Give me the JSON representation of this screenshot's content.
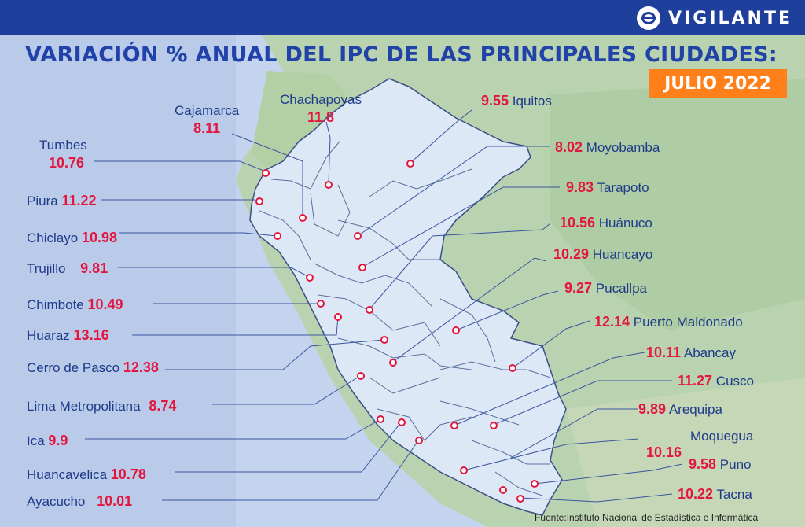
{
  "brand": {
    "name": "VIGILANTE",
    "logo_icon": "vigilante-logo-icon"
  },
  "title": "VARIACIÓN % ANUAL DEL IPC DE LAS PRINCIPALES CIUDADES:",
  "subtitle": "JULIO 2022",
  "source": "Fuente:Instituto Nacional de Estadística e Informática",
  "colors": {
    "accent_blue": "#1f3f9c",
    "value_red": "#e3163f",
    "badge_orange": "#ff7f1a",
    "map_fill": "#dde8f6"
  },
  "cities": {
    "tumbes": {
      "name": "Tumbes",
      "value": "10.76"
    },
    "piura": {
      "name": "Piura",
      "value": "11.22"
    },
    "chiclayo": {
      "name": "Chiclayo",
      "value": "10.98"
    },
    "trujillo": {
      "name": "Trujillo",
      "value": "9.81"
    },
    "chimbote": {
      "name": "Chimbote",
      "value": "10.49"
    },
    "huaraz": {
      "name": "Huaraz",
      "value": "13.16"
    },
    "cerro_de_pasco": {
      "name": "Cerro de Pasco",
      "value": "12.38"
    },
    "lima": {
      "name": "Lima Metropolitana",
      "value": "8.74"
    },
    "ica": {
      "name": "Ica",
      "value": "9.9"
    },
    "huancavelica": {
      "name": "Huancavelica",
      "value": "10.78"
    },
    "ayacucho": {
      "name": "Ayacucho",
      "value": "10.01"
    },
    "cajamarca": {
      "name": "Cajamarca",
      "value": "8.11"
    },
    "chachapoyas": {
      "name": "Chachapoyas",
      "value": "11.8"
    },
    "iquitos": {
      "name": "Iquitos",
      "value": "9.55"
    },
    "moyobamba": {
      "name": "Moyobamba",
      "value": "8.02"
    },
    "tarapoto": {
      "name": "Tarapoto",
      "value": "9.83"
    },
    "huanuco": {
      "name": "Huánuco",
      "value": "10.56"
    },
    "huancayo": {
      "name": "Huancayo",
      "value": "10.29"
    },
    "pucallpa": {
      "name": "Pucallpa",
      "value": "9.27"
    },
    "puerto_maldonado": {
      "name": "Puerto Maldonado",
      "value": "12.14"
    },
    "abancay": {
      "name": "Abancay",
      "value": "10.11"
    },
    "cusco": {
      "name": "Cusco",
      "value": "11.27"
    },
    "arequipa": {
      "name": "Arequipa",
      "value": "9.89"
    },
    "moquegua": {
      "name": "Moquegua",
      "value": "10.16"
    },
    "puno": {
      "name": "Puno",
      "value": "9.58"
    },
    "tacna": {
      "name": "Tacna",
      "value": "10.22"
    }
  }
}
